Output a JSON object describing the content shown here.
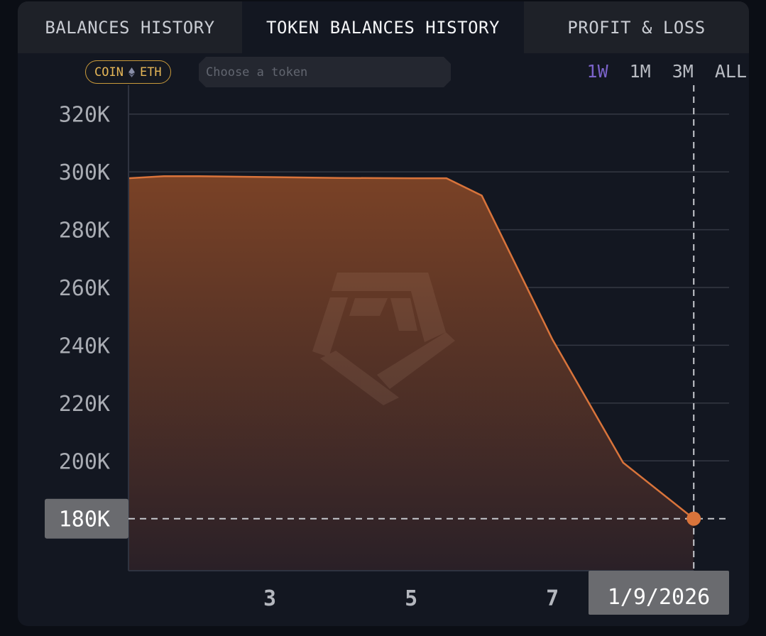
{
  "tabs": [
    {
      "label": "BALANCES HISTORY"
    },
    {
      "label": "TOKEN BALANCES HISTORY"
    },
    {
      "label": "PROFIT & LOSS"
    }
  ],
  "active_tab": 1,
  "filter": {
    "coin_prefix": "COIN",
    "coin_symbol": "ETH",
    "token_placeholder": "Choose a token"
  },
  "ranges": [
    {
      "label": "1W"
    },
    {
      "label": "1M"
    },
    {
      "label": "3M"
    },
    {
      "label": "ALL"
    }
  ],
  "active_range": "1W",
  "colors": {
    "accent_line": "#d9743b",
    "accent_range": "#7b63c9",
    "coin_badge": "#e5b657"
  },
  "chart_data": {
    "type": "area",
    "x": [
      1.0,
      1.5,
      2.0,
      3.0,
      4.0,
      5.0,
      5.5,
      6.0,
      7.0,
      8.0,
      9.0
    ],
    "series": [
      {
        "values": [
          297800,
          298500,
          298500,
          298200,
          297900,
          297800,
          297800,
          291800,
          242000,
          199400,
          180000
        ]
      }
    ],
    "x_ticks": [
      {
        "x": 3,
        "label": "3"
      },
      {
        "x": 5,
        "label": "5"
      },
      {
        "x": 7,
        "label": "7"
      }
    ],
    "y_ticks": [
      {
        "y": 200000,
        "label": "200K"
      },
      {
        "y": 220000,
        "label": "220K"
      },
      {
        "y": 240000,
        "label": "240K"
      },
      {
        "y": 260000,
        "label": "260K"
      },
      {
        "y": 280000,
        "label": "280K"
      },
      {
        "y": 300000,
        "label": "300K"
      },
      {
        "y": 320000,
        "label": "320K"
      }
    ],
    "xlim": [
      1.0,
      9.5
    ],
    "ylim": [
      162000,
      330000
    ],
    "grid": true,
    "crosshair": {
      "x": 9.0,
      "y": 180000,
      "x_label": "1/9/2026",
      "y_label": "180K"
    }
  }
}
